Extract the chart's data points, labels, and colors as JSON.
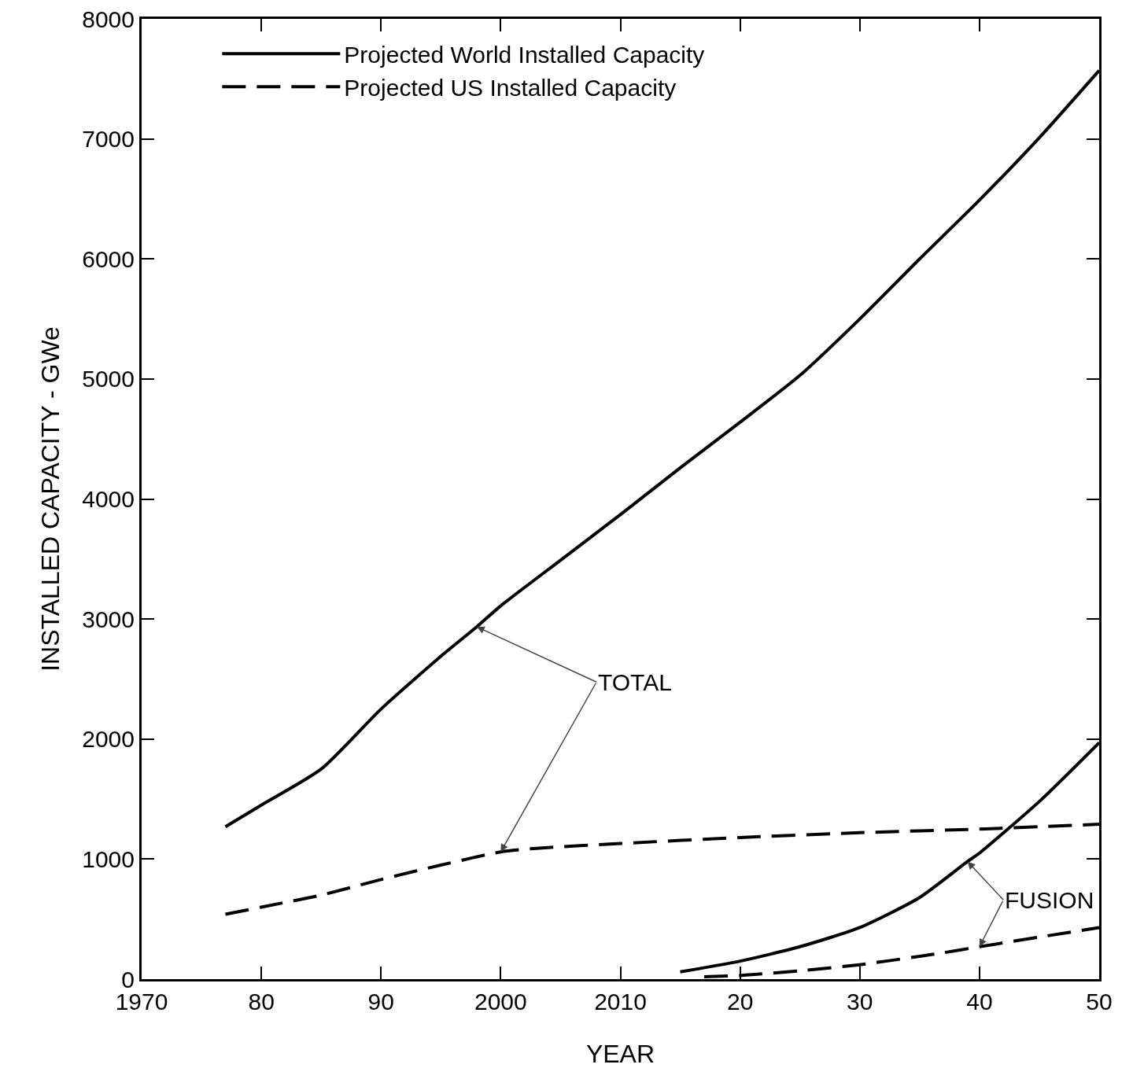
{
  "chart_data": {
    "type": "line",
    "xlabel": "YEAR",
    "ylabel": "INSTALLED CAPACITY - GWe",
    "xlim": [
      1970,
      2050
    ],
    "xticks": [
      1970,
      {
        "value": 1980,
        "label": "80"
      },
      {
        "value": 1990,
        "label": "90"
      },
      2000,
      2010,
      {
        "value": 2020,
        "label": "20"
      },
      {
        "value": 2030,
        "label": "30"
      },
      {
        "value": 2040,
        "label": "40"
      },
      {
        "value": 2050,
        "label": "50"
      }
    ],
    "ylim": [
      0,
      8000
    ],
    "yticks": [
      0,
      1000,
      2000,
      3000,
      4000,
      5000,
      6000,
      7000,
      8000
    ],
    "grid": false,
    "legend": "top left",
    "marker": "none",
    "series": [
      {
        "name": "Projected World Installed Capacity",
        "color": "#000000",
        "line_style": "solid",
        "x": [
          1977,
          1980,
          1985,
          1990,
          1995,
          1998,
          2000,
          2005,
          2010,
          2015,
          2020,
          2025,
          2030,
          2035,
          2040,
          2045,
          2050
        ],
        "values": [
          1270,
          1450,
          1750,
          2250,
          2690,
          2935,
          3110,
          3490,
          3870,
          4260,
          4640,
          5030,
          5500,
          6000,
          6490,
          7010,
          7570
        ]
      },
      {
        "name": "Projected US Installed Capacity",
        "color": "#000000",
        "line_style": "dashed",
        "x": [
          1977,
          1980,
          1985,
          1990,
          1995,
          2000,
          2003,
          2010,
          2020,
          2030,
          2040,
          2050
        ],
        "values": [
          540,
          600,
          700,
          830,
          950,
          1060,
          1090,
          1130,
          1180,
          1220,
          1250,
          1290
        ]
      },
      {
        "color": "#000000",
        "line_style": "solid",
        "x": [
          2015,
          2020,
          2025,
          2030,
          2035,
          2039,
          2040,
          2045,
          2050
        ],
        "values": [
          60,
          150,
          270,
          430,
          680,
          980,
          1050,
          1480,
          1970
        ]
      },
      {
        "color": "#000000",
        "line_style": "dashed",
        "x": [
          2017,
          2020,
          2025,
          2030,
          2035,
          2037,
          2040,
          2045,
          2050
        ],
        "values": [
          20,
          30,
          70,
          120,
          190,
          220,
          270,
          350,
          430
        ]
      }
    ],
    "annotations": [
      {
        "text": "TOTAL",
        "x": 1998,
        "y": 2935
      },
      {
        "text": "FUSION",
        "x": 2039,
        "y": 980
      }
    ]
  }
}
